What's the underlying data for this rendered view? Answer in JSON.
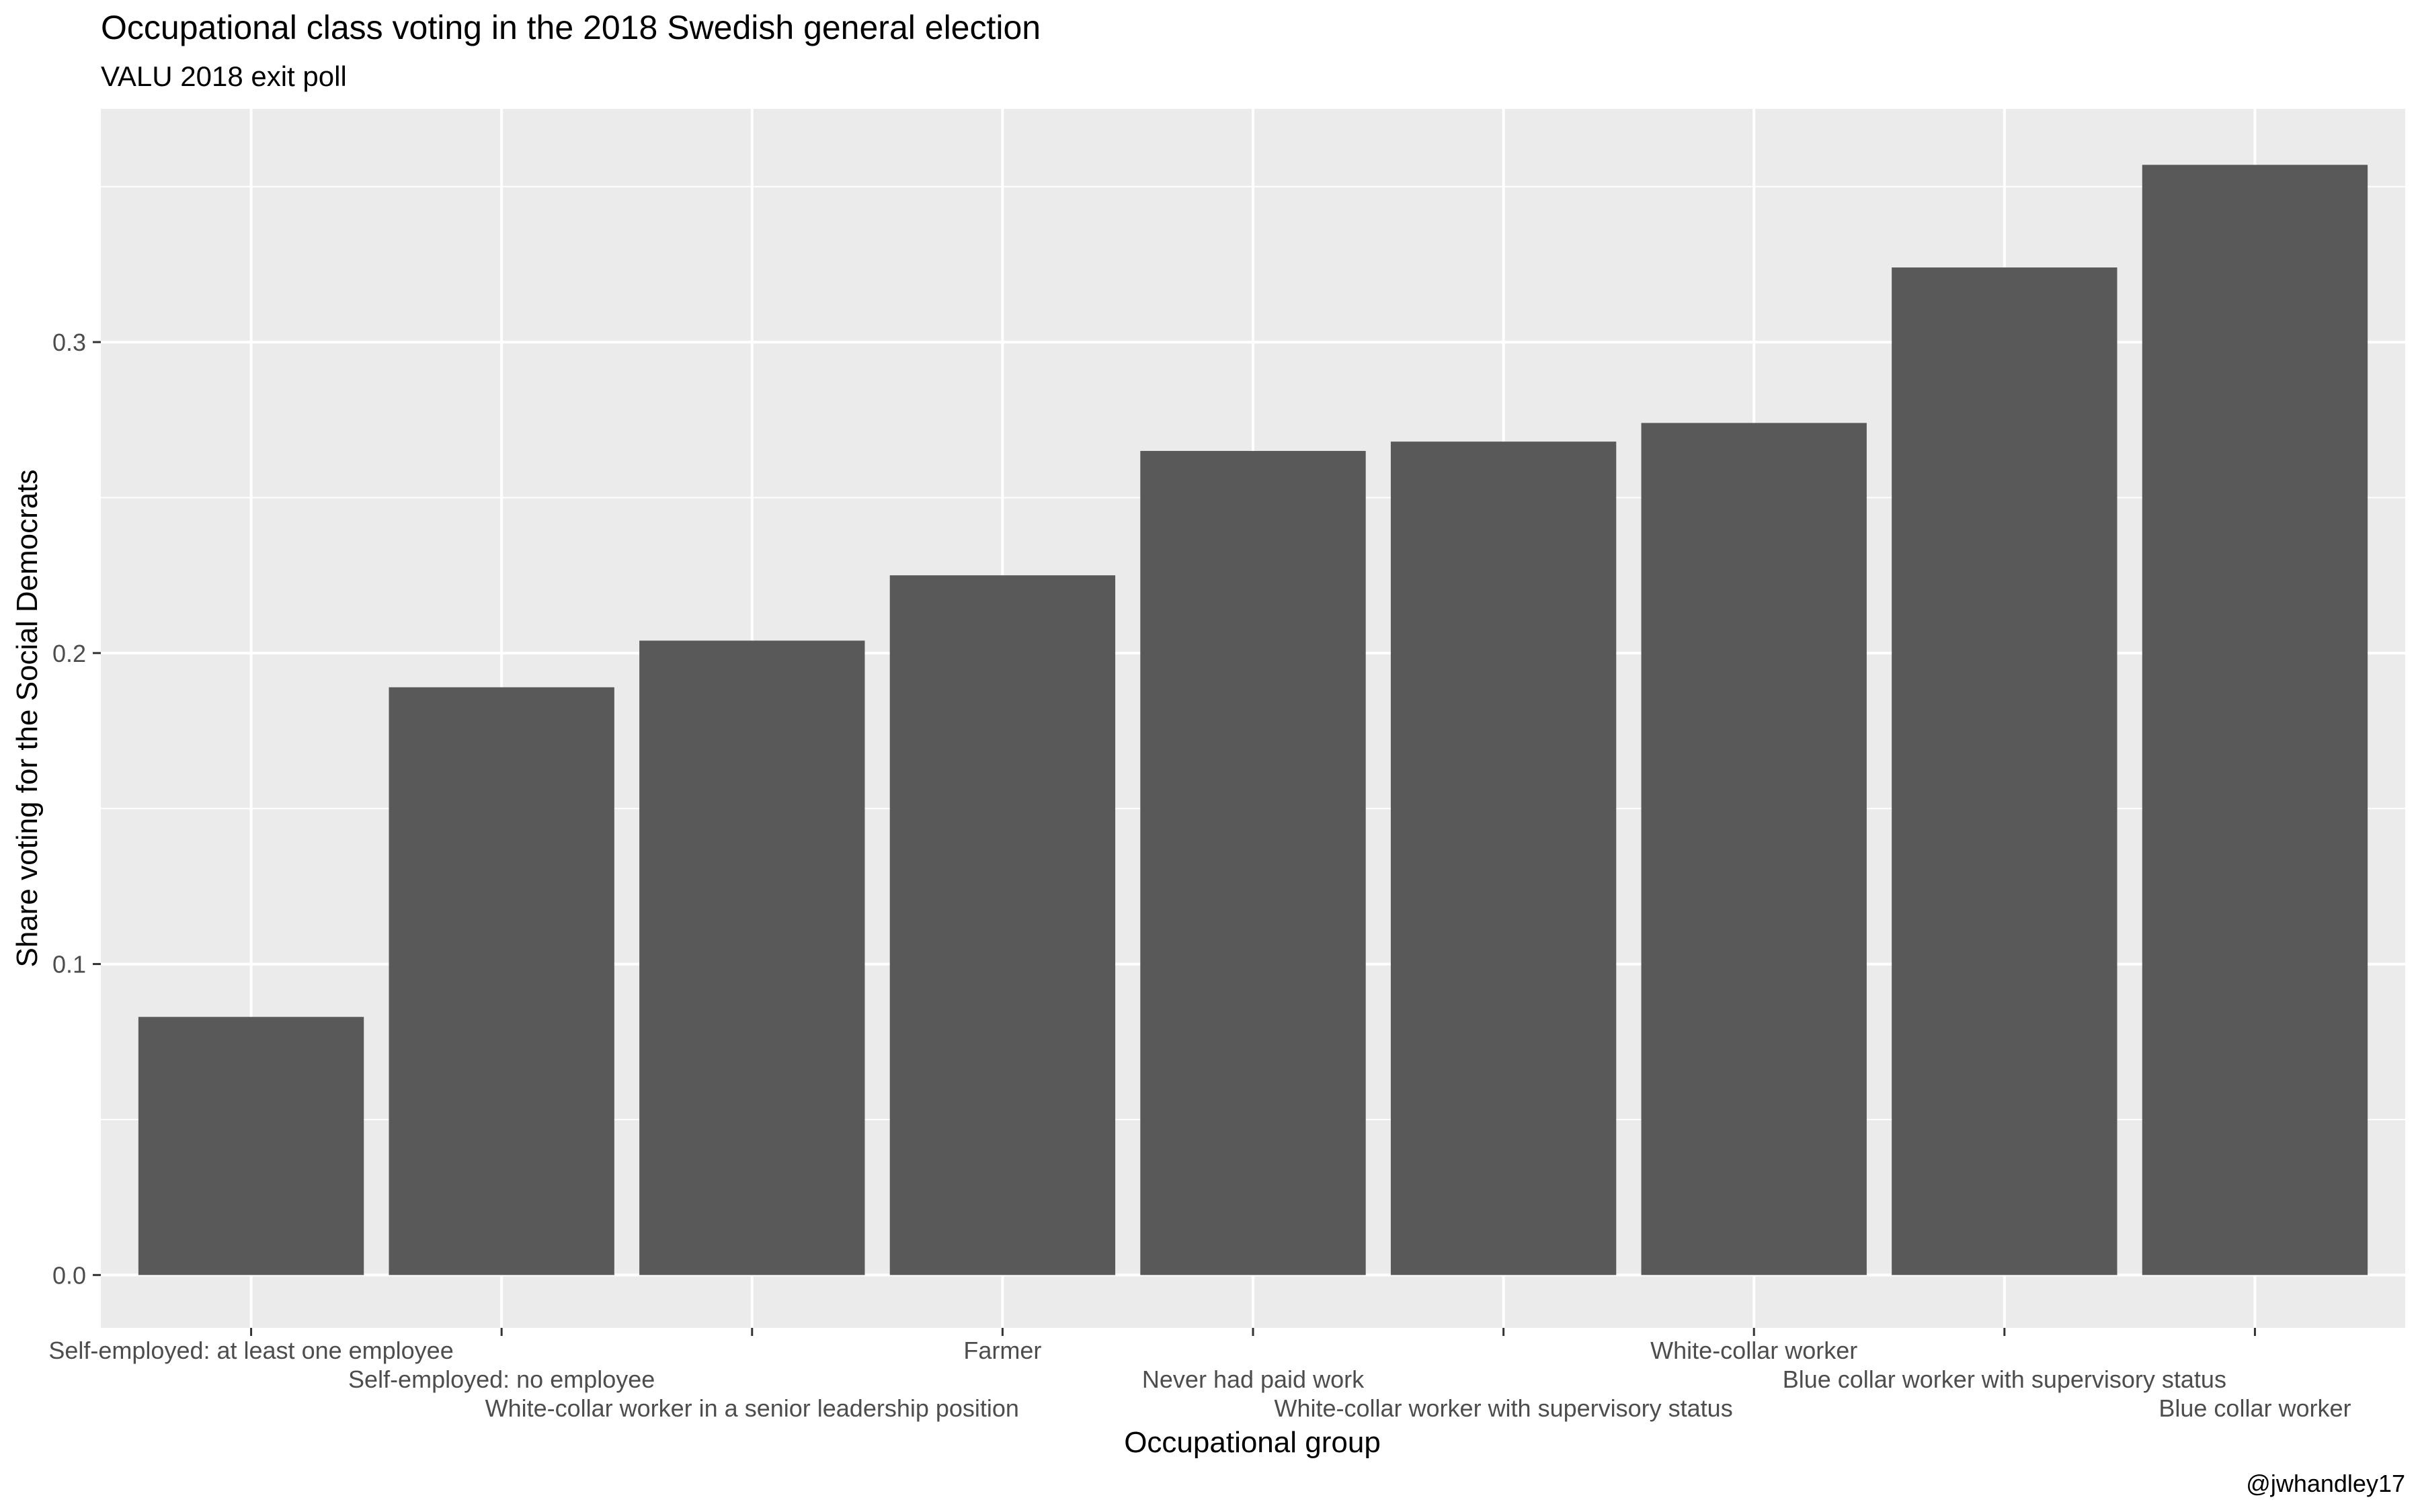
{
  "chart_data": {
    "type": "bar",
    "title": "Occupational class voting in the 2018 Swedish general election",
    "subtitle": "VALU 2018 exit poll",
    "xlabel": "Occupational group",
    "ylabel": "Share voting for the Social Democrats",
    "caption": "@jwhandley17",
    "categories": [
      "Self-employed: at least one employee",
      "Self-employed: no employee",
      "White-collar worker in a senior leadership position",
      "Farmer",
      "Never had paid work",
      "White-collar worker with supervisory status",
      "White-collar worker",
      "Blue collar worker with supervisory status",
      "Blue collar worker"
    ],
    "values": [
      0.083,
      0.189,
      0.204,
      0.225,
      0.265,
      0.268,
      0.274,
      0.324,
      0.357
    ],
    "ylim": [
      -0.017,
      0.375
    ],
    "yticks": [
      0.0,
      0.1,
      0.2,
      0.3
    ],
    "ytick_labels": [
      "0.0",
      "0.1",
      "0.2",
      "0.3"
    ],
    "grid": true,
    "colors": {
      "bar": "#595959",
      "panel": "#ebebeb",
      "grid": "#ffffff"
    }
  }
}
